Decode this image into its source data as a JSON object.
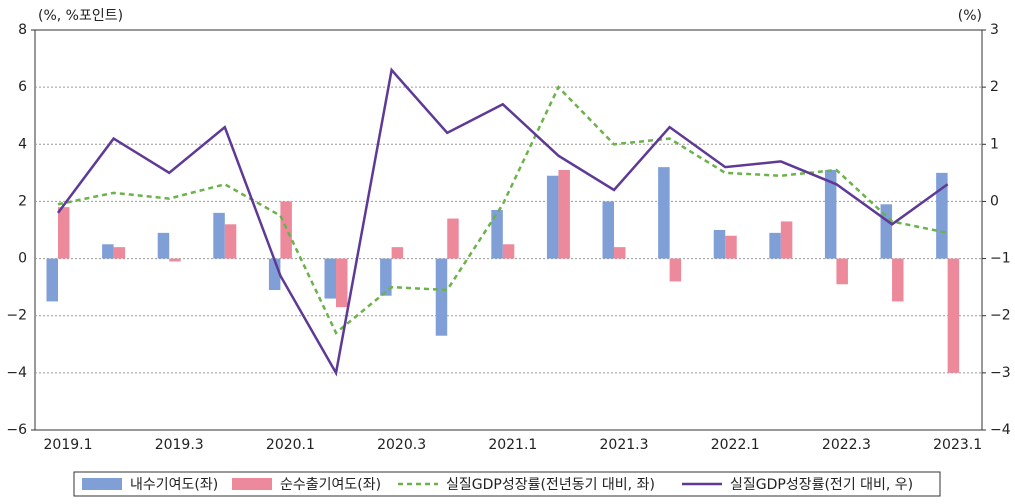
{
  "chart_data": {
    "type": "bar-line",
    "y_label": "(%, %포인트)",
    "y2_label": "(%)",
    "categories": [
      "2019.1",
      null,
      "2019.3",
      null,
      "2020.1",
      null,
      "2020.3",
      null,
      "2021.1",
      null,
      "2021.3",
      null,
      "2022.1",
      null,
      "2022.3",
      null,
      "2023.1"
    ],
    "series": [
      {
        "name": "내수기여도(좌)",
        "kind": "bar",
        "color": "#7f9fd6",
        "values": [
          -1.5,
          0.5,
          0.9,
          1.6,
          -1.1,
          -1.4,
          -1.3,
          -2.7,
          1.7,
          2.9,
          2.0,
          3.2,
          1.0,
          0.9,
          3.1,
          1.9,
          3.0
        ]
      },
      {
        "name": "순수출기여도(좌)",
        "kind": "bar",
        "color": "#ec8a9c",
        "values": [
          1.8,
          0.4,
          -0.1,
          1.2,
          2.0,
          -1.7,
          0.4,
          1.4,
          0.5,
          3.1,
          0.4,
          -0.8,
          0.8,
          1.3,
          -0.9,
          -1.5,
          -4.0
        ]
      },
      {
        "name": "실질GDP성장률(전년동기 대비, 좌)",
        "kind": "line",
        "dash": true,
        "color": "#6bb24a",
        "values": [
          1.9,
          2.3,
          2.1,
          2.6,
          1.5,
          -2.6,
          -1.0,
          -1.1,
          1.9,
          6.0,
          4.0,
          4.2,
          3.0,
          2.9,
          3.1,
          1.3,
          0.9
        ]
      },
      {
        "name": "실질GDP성장률(전기 대비, 우)",
        "kind": "line",
        "axis": "y2",
        "color": "#5e3a96",
        "values": [
          -0.2,
          1.1,
          0.5,
          1.3,
          -1.3,
          -3.0,
          2.3,
          1.2,
          1.7,
          0.8,
          0.2,
          1.3,
          0.6,
          0.7,
          0.3,
          -0.4,
          0.3
        ]
      }
    ],
    "ylim": [
      -6,
      8
    ],
    "yticks": [
      {
        "value": -6,
        "label": "−6"
      },
      {
        "value": -4,
        "label": "−4"
      },
      {
        "value": -2,
        "label": "−2"
      },
      0,
      2,
      4,
      6,
      8
    ],
    "y2lim": [
      -4,
      3
    ],
    "y2ticks": [
      {
        "value": -4,
        "label": "−4"
      },
      {
        "value": -3,
        "label": "−3"
      },
      {
        "value": -2,
        "label": "−2"
      },
      {
        "value": -1,
        "label": "−1"
      },
      0,
      1,
      2,
      3
    ],
    "grid": true,
    "legend": "bottom"
  }
}
